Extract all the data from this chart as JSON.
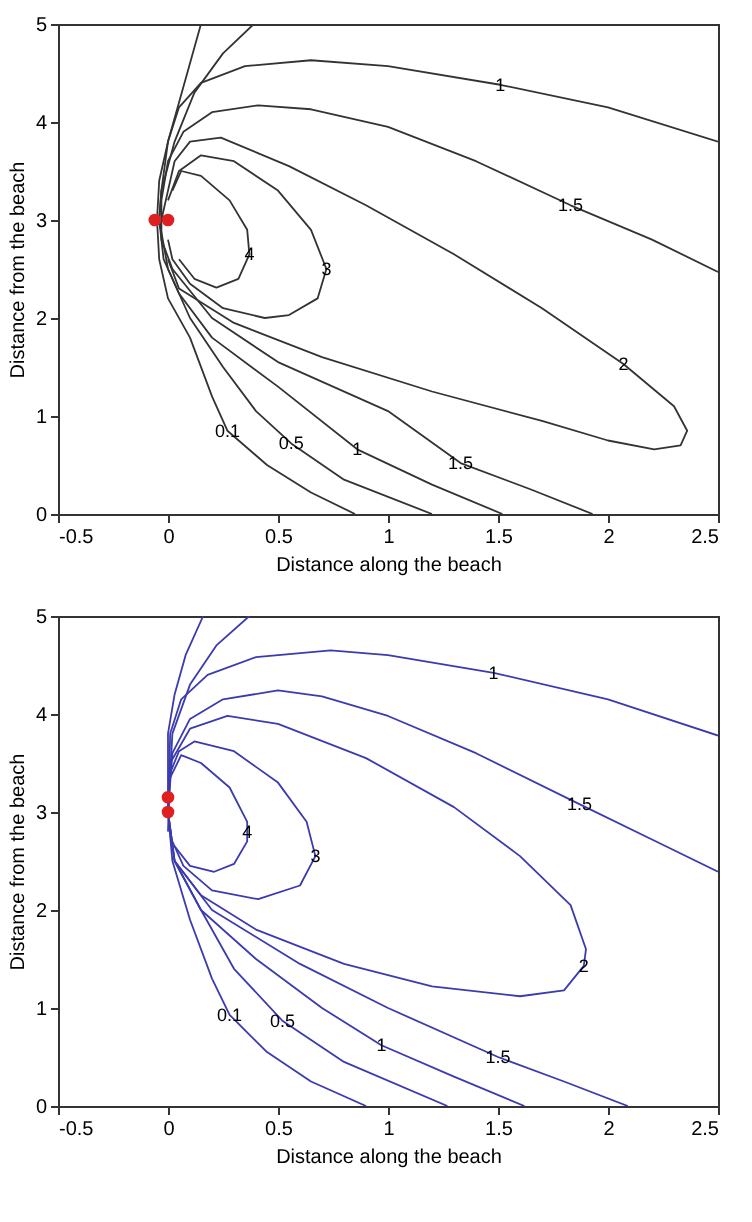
{
  "chart_data": [
    {
      "type": "line",
      "xlabel": "Distance along the beach",
      "ylabel": "Distance from the beach",
      "xlim": [
        -0.5,
        2.5
      ],
      "ylim": [
        0,
        5
      ],
      "xticks": [
        -0.5,
        0,
        0.5,
        1,
        1.5,
        2,
        2.5
      ],
      "yticks": [
        0,
        1,
        2,
        3,
        4,
        5
      ],
      "grid": false,
      "series": [
        {
          "color": "#333333",
          "x": [
            0.15,
            0.1,
            0.05,
            0,
            -0.04,
            -0.05,
            -0.04,
            0,
            0.1,
            0.2,
            0.27,
            0.45,
            0.65,
            0.85
          ],
          "values": [
            5,
            4.6,
            4.2,
            3.8,
            3.4,
            3.0,
            2.6,
            2.2,
            1.8,
            1.2,
            0.85,
            0.5,
            0.22,
            0
          ]
        },
        {
          "color": "#333333",
          "x": [
            0.39,
            0.25,
            0.12,
            0.03,
            -0.03,
            -0.04,
            0,
            0.1,
            0.25,
            0.4,
            0.56,
            0.8,
            1.2
          ],
          "values": [
            5,
            4.7,
            4.3,
            3.8,
            3.3,
            3.0,
            2.5,
            2.0,
            1.5,
            1.05,
            0.72,
            0.35,
            0
          ]
        },
        {
          "color": "#333333",
          "x": [
            2.5,
            2.0,
            1.51,
            1.0,
            0.65,
            0.35,
            0.15,
            0.05,
            0,
            -0.03,
            -0.04,
            -0.02,
            0.05,
            0.2,
            0.5,
            0.86,
            1.2,
            1.52
          ],
          "values": [
            3.8,
            4.15,
            4.38,
            4.57,
            4.63,
            4.57,
            4.4,
            4.15,
            3.8,
            3.3,
            3.0,
            2.6,
            2.25,
            1.8,
            1.3,
            0.66,
            0.3,
            0
          ]
        },
        {
          "color": "#333333",
          "x": [
            2.5,
            2.2,
            1.83,
            1.4,
            1.0,
            0.65,
            0.41,
            0.2,
            0.07,
            0,
            -0.03,
            -0.03,
            0.02,
            0.2,
            0.5,
            1.0,
            1.33,
            1.65,
            1.93
          ],
          "values": [
            2.47,
            2.8,
            3.15,
            3.6,
            3.95,
            4.13,
            4.17,
            4.1,
            3.9,
            3.6,
            3.2,
            2.8,
            2.5,
            2.0,
            1.55,
            1.05,
            0.52,
            0.25,
            0
          ]
        },
        {
          "color": "#333333",
          "x": [
            -0.03,
            0,
            0.03,
            0.1,
            0.24,
            0.55,
            0.9,
            1.3,
            1.7,
            2.07,
            2.3,
            2.36,
            2.33,
            2.21,
            2.0,
            1.7,
            1.2,
            0.7,
            0.3,
            0.05,
            0
          ],
          "values": [
            3.0,
            3.3,
            3.6,
            3.8,
            3.84,
            3.55,
            3.15,
            2.65,
            2.1,
            1.53,
            1.1,
            0.85,
            0.7,
            0.66,
            0.75,
            0.95,
            1.25,
            1.6,
            1.95,
            2.3,
            2.6
          ]
        },
        {
          "color": "#333333",
          "x": [
            0,
            0.05,
            0.15,
            0.3,
            0.5,
            0.65,
            0.72,
            0.68,
            0.55,
            0.44,
            0.25,
            0.1,
            0.02,
            0
          ],
          "values": [
            3.2,
            3.5,
            3.66,
            3.6,
            3.3,
            2.9,
            2.5,
            2.2,
            2.03,
            2.0,
            2.1,
            2.35,
            2.6,
            2.8
          ]
        },
        {
          "color": "#333333",
          "x": [
            0.02,
            0.06,
            0.15,
            0.28,
            0.36,
            0.37,
            0.32,
            0.22,
            0.12,
            0.05
          ],
          "values": [
            3.3,
            3.5,
            3.45,
            3.2,
            2.9,
            2.65,
            2.4,
            2.31,
            2.4,
            2.6
          ]
        },
        {
          "type": "scatter",
          "marker": "circle",
          "color": "#e02020",
          "x": [
            -0.06,
            0
          ],
          "values": [
            3,
            3
          ]
        }
      ],
      "annotations": [
        {
          "text": "0.1",
          "x": 0.27,
          "y": 0.85
        },
        {
          "text": "0.5",
          "x": 0.56,
          "y": 0.72
        },
        {
          "text": "1",
          "x": 0.86,
          "y": 0.66
        },
        {
          "text": "1.5",
          "x": 1.33,
          "y": 0.52
        },
        {
          "text": "1",
          "x": 1.51,
          "y": 4.38
        },
        {
          "text": "1.5",
          "x": 1.83,
          "y": 3.15
        },
        {
          "text": "2",
          "x": 2.07,
          "y": 1.53
        },
        {
          "text": "3",
          "x": 0.72,
          "y": 2.5
        },
        {
          "text": "4",
          "x": 0.37,
          "y": 2.65
        }
      ]
    },
    {
      "type": "line",
      "xlabel": "Distance along the beach",
      "ylabel": "Distance from the beach",
      "xlim": [
        -0.5,
        2.5
      ],
      "ylim": [
        0,
        5
      ],
      "xticks": [
        -0.5,
        0,
        0.5,
        1,
        1.5,
        2,
        2.5
      ],
      "yticks": [
        0,
        1,
        2,
        3,
        4,
        5
      ],
      "grid": false,
      "series": [
        {
          "color": "#3b3bb0",
          "x": [
            0.16,
            0.08,
            0.03,
            0,
            0,
            0.02,
            0.1,
            0.2,
            0.28,
            0.45,
            0.65,
            0.9
          ],
          "values": [
            5,
            4.6,
            4.2,
            3.8,
            3.0,
            2.5,
            1.9,
            1.3,
            0.93,
            0.55,
            0.25,
            0
          ]
        },
        {
          "color": "#3b3bb0",
          "x": [
            0.37,
            0.22,
            0.1,
            0.02,
            0,
            0.03,
            0.15,
            0.3,
            0.52,
            0.8,
            1.27
          ],
          "values": [
            5,
            4.7,
            4.3,
            3.8,
            3.0,
            2.5,
            2.0,
            1.4,
            0.87,
            0.45,
            0
          ]
        },
        {
          "color": "#3b3bb0",
          "x": [
            2.5,
            2.0,
            1.48,
            1.0,
            0.74,
            0.4,
            0.18,
            0.06,
            0.01,
            0,
            0.03,
            0.15,
            0.4,
            0.7,
            0.97,
            1.3,
            1.62
          ],
          "values": [
            3.78,
            4.15,
            4.42,
            4.6,
            4.65,
            4.58,
            4.4,
            4.15,
            3.8,
            3.0,
            2.5,
            2.0,
            1.5,
            1.0,
            0.62,
            0.3,
            0
          ]
        },
        {
          "color": "#3b3bb0",
          "x": [
            2.5,
            2.2,
            1.87,
            1.4,
            1.0,
            0.7,
            0.5,
            0.25,
            0.1,
            0.02,
            0,
            0.03,
            0.2,
            0.6,
            1.0,
            1.5,
            1.8,
            2.09
          ],
          "values": [
            2.39,
            2.72,
            3.08,
            3.6,
            3.98,
            4.18,
            4.24,
            4.15,
            3.95,
            3.6,
            3.0,
            2.5,
            2.0,
            1.45,
            1.0,
            0.5,
            0.25,
            0
          ]
        },
        {
          "color": "#3b3bb0",
          "x": [
            0,
            0.01,
            0.1,
            0.27,
            0.5,
            0.9,
            1.3,
            1.6,
            1.83,
            1.9,
            1.89,
            1.8,
            1.6,
            1.2,
            0.8,
            0.4,
            0.15,
            0.03
          ],
          "values": [
            2.8,
            3.5,
            3.85,
            3.98,
            3.9,
            3.55,
            3.05,
            2.55,
            2.05,
            1.6,
            1.43,
            1.18,
            1.12,
            1.22,
            1.45,
            1.8,
            2.15,
            2.5
          ]
        },
        {
          "color": "#3b3bb0",
          "x": [
            0.01,
            0.05,
            0.12,
            0.3,
            0.5,
            0.63,
            0.67,
            0.6,
            0.41,
            0.2,
            0.07,
            0.01
          ],
          "values": [
            3.4,
            3.62,
            3.72,
            3.62,
            3.3,
            2.9,
            2.55,
            2.25,
            2.11,
            2.2,
            2.45,
            2.75
          ]
        },
        {
          "color": "#3b3bb0",
          "x": [
            0.01,
            0.06,
            0.15,
            0.28,
            0.36,
            0.36,
            0.3,
            0.21,
            0.1,
            0.03
          ],
          "values": [
            3.35,
            3.58,
            3.5,
            3.25,
            2.9,
            2.7,
            2.47,
            2.39,
            2.45,
            2.65
          ]
        },
        {
          "type": "scatter",
          "marker": "circle",
          "color": "#e02020",
          "x": [
            0,
            0
          ],
          "values": [
            3,
            3.15
          ]
        }
      ],
      "annotations": [
        {
          "text": "0.1",
          "x": 0.28,
          "y": 0.93
        },
        {
          "text": "0.5",
          "x": 0.52,
          "y": 0.87
        },
        {
          "text": "1",
          "x": 0.97,
          "y": 0.62
        },
        {
          "text": "1.5",
          "x": 1.5,
          "y": 0.5
        },
        {
          "text": "1",
          "x": 1.48,
          "y": 4.42
        },
        {
          "text": "1.5",
          "x": 1.87,
          "y": 3.08
        },
        {
          "text": "2",
          "x": 1.89,
          "y": 1.43
        },
        {
          "text": "3",
          "x": 0.67,
          "y": 2.55
        },
        {
          "text": "4",
          "x": 0.36,
          "y": 2.8
        }
      ]
    }
  ]
}
